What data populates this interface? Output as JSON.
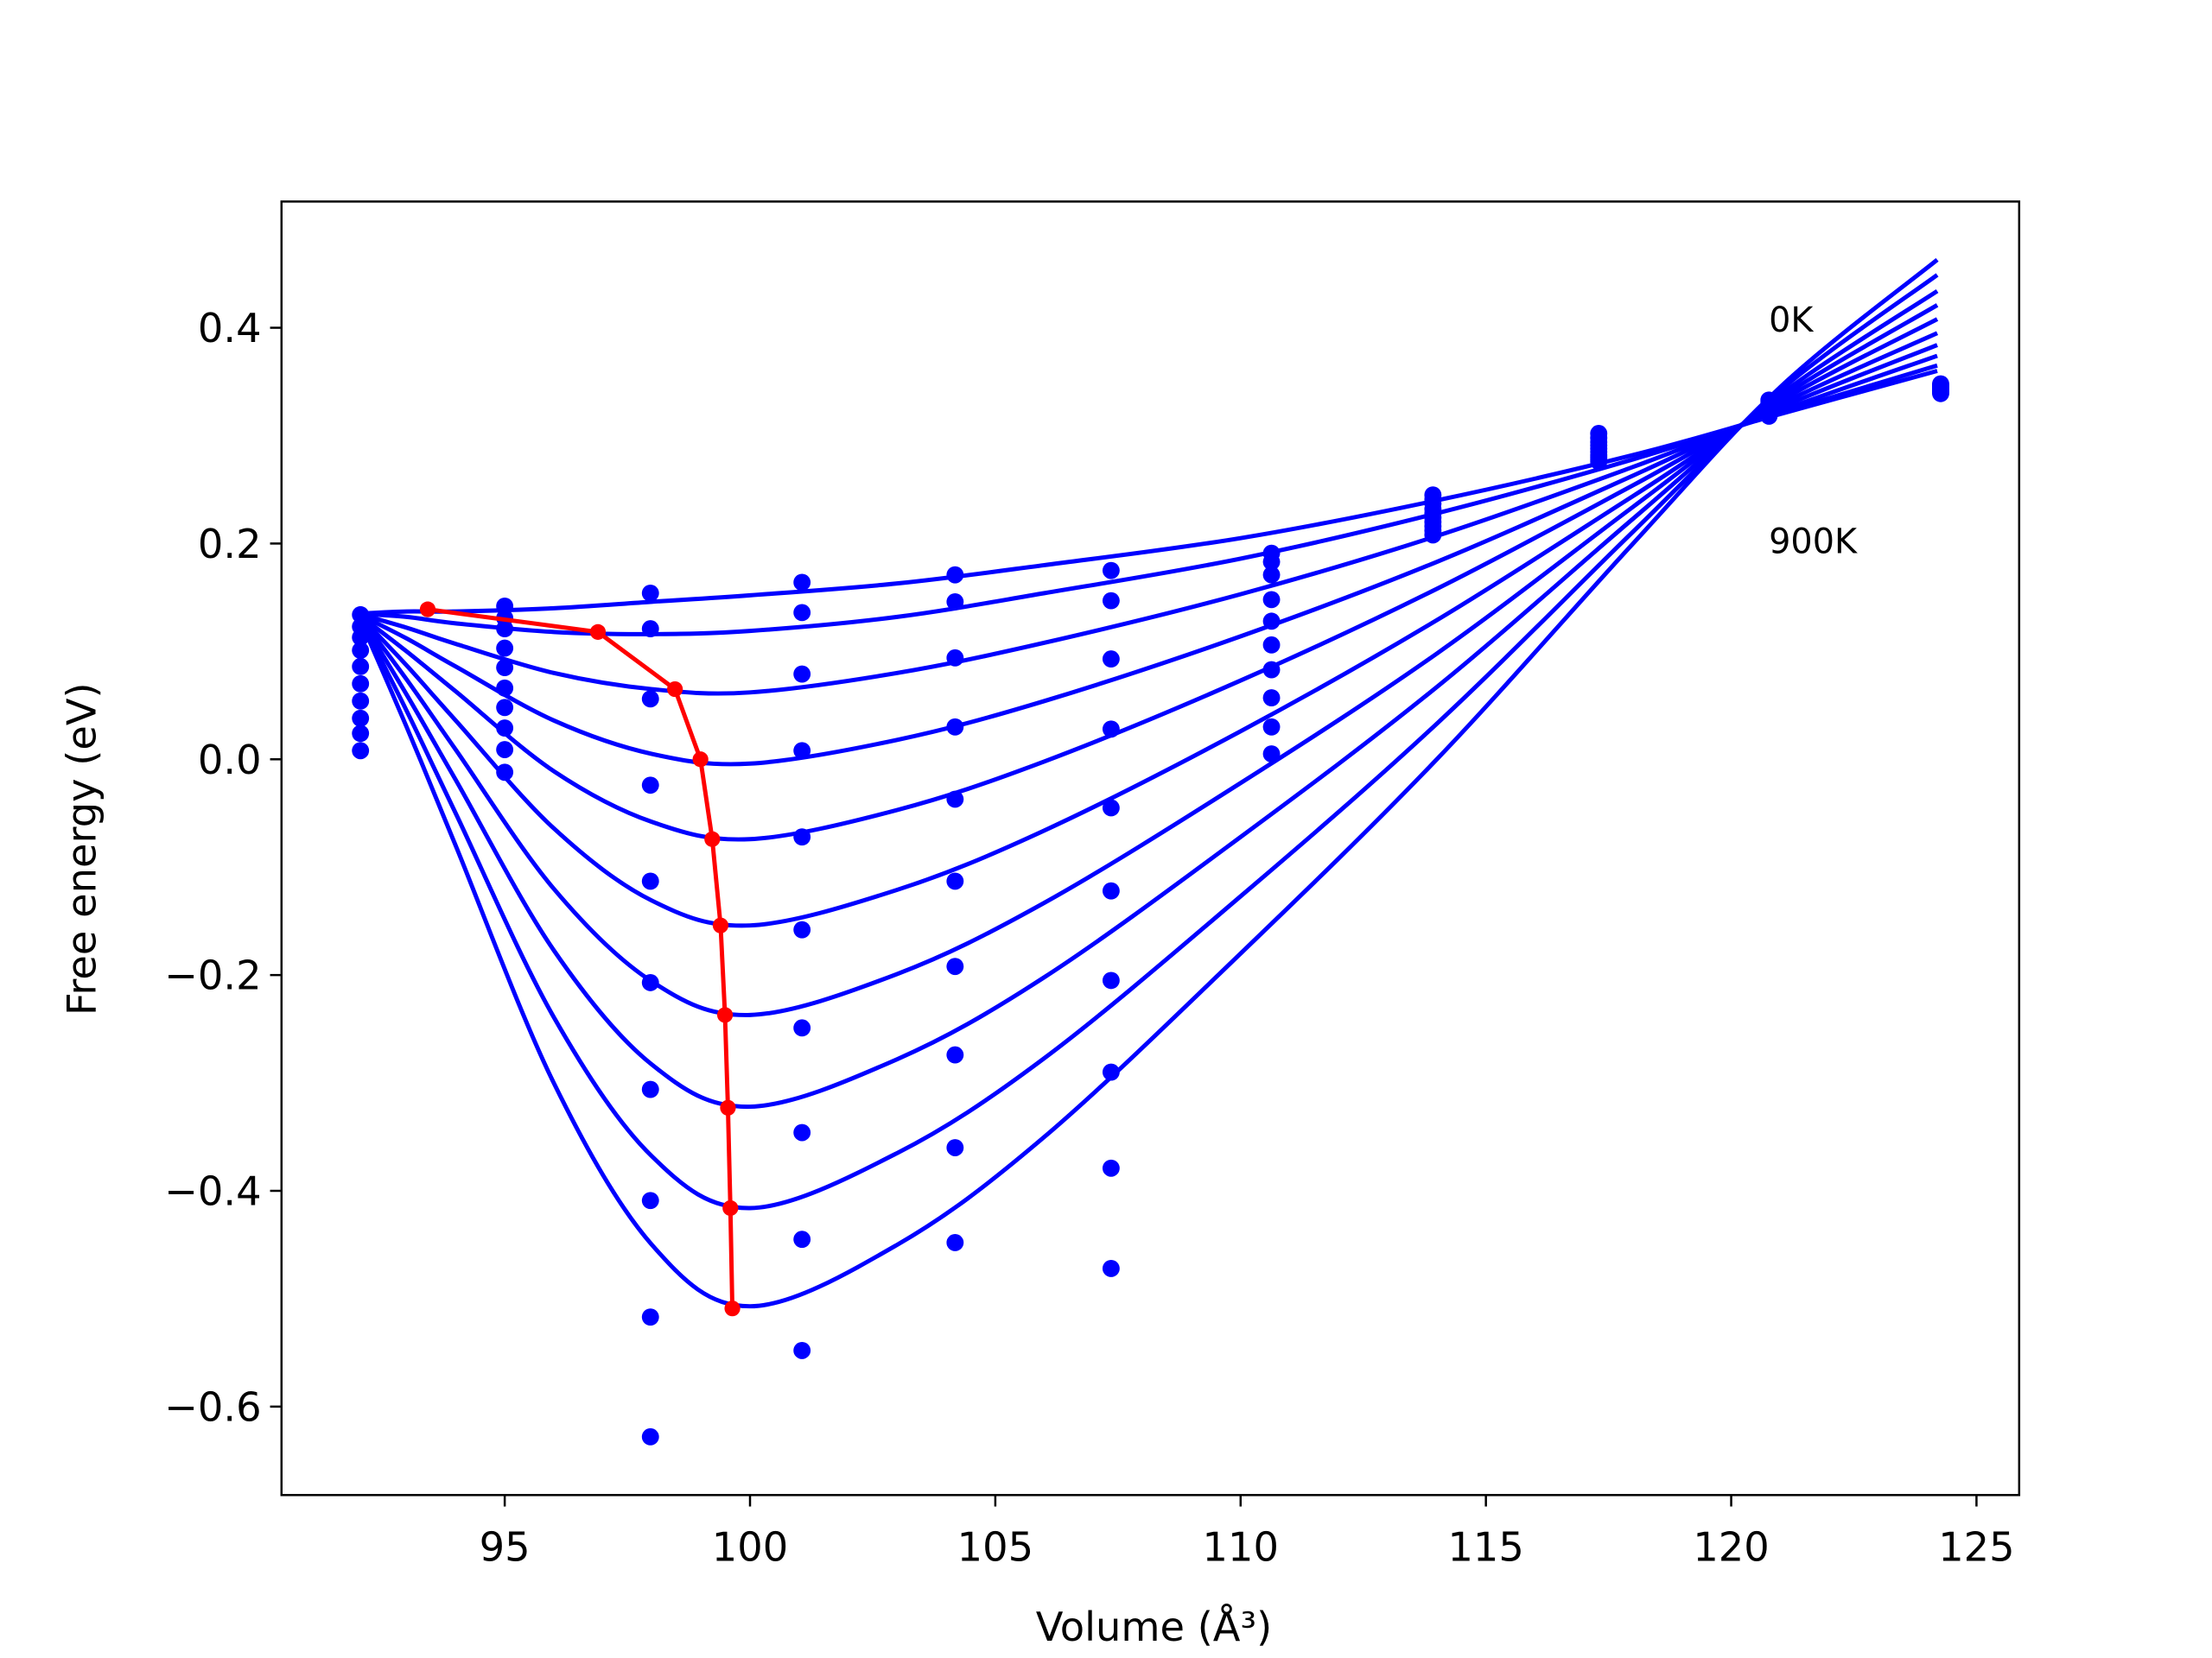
{
  "chart_data": {
    "type": "line",
    "xlabel": "Volume (Å³)",
    "ylabel": "Free energy (eV)",
    "annotations": [
      "0K",
      "900K"
    ],
    "xlim": [
      90.45,
      125.87
    ],
    "ylim": [
      -0.682,
      0.517
    ],
    "xticks": [
      95,
      100,
      105,
      110,
      115,
      120,
      125
    ],
    "yticks": [
      {
        "value": -0.6,
        "label": "−0.6"
      },
      {
        "value": -0.4,
        "label": "−0.4"
      },
      {
        "value": -0.2,
        "label": "−0.2"
      },
      {
        "value": 0,
        "label": "0.0"
      },
      0.2,
      0.4
    ],
    "curve_x": [
      92,
      93,
      94,
      96,
      98,
      100,
      103,
      106,
      110,
      114,
      118,
      121,
      124.2
    ],
    "curve_color": "#0000ff",
    "curves": [
      [
        0.135,
        0.137,
        0.137,
        0.14,
        0.146,
        0.152,
        0.163,
        0.18,
        0.205,
        0.24,
        0.282,
        0.32,
        0.36
      ],
      [
        0.135,
        0.132,
        0.126,
        0.118,
        0.116,
        0.119,
        0.132,
        0.154,
        0.186,
        0.228,
        0.278,
        0.321,
        0.365
      ],
      [
        0.135,
        0.122,
        0.107,
        0.08,
        0.065,
        0.062,
        0.08,
        0.108,
        0.153,
        0.207,
        0.271,
        0.323,
        0.374
      ],
      [
        0.135,
        0.112,
        0.086,
        0.036,
        0.005,
        -0.004,
        0.018,
        0.054,
        0.114,
        0.183,
        0.263,
        0.326,
        0.384
      ],
      [
        0.135,
        0.1,
        0.063,
        -0.011,
        -0.058,
        -0.074,
        -0.047,
        -0.002,
        0.073,
        0.158,
        0.254,
        0.329,
        0.395
      ],
      [
        0.135,
        0.087,
        0.036,
        -0.064,
        -0.131,
        -0.154,
        -0.121,
        -0.066,
        0.026,
        0.129,
        0.244,
        0.332,
        0.408
      ],
      [
        0.135,
        0.074,
        0.009,
        -0.12,
        -0.206,
        -0.237,
        -0.199,
        -0.133,
        -0.022,
        0.098,
        0.234,
        0.335,
        0.421
      ],
      [
        0.135,
        0.06,
        -0.019,
        -0.177,
        -0.283,
        -0.322,
        -0.278,
        -0.202,
        -0.072,
        0.067,
        0.223,
        0.338,
        0.434
      ],
      [
        0.135,
        0.045,
        -0.05,
        -0.239,
        -0.368,
        -0.416,
        -0.365,
        -0.277,
        -0.127,
        0.033,
        0.211,
        0.342,
        0.449
      ],
      [
        0.135,
        0.03,
        -0.08,
        -0.3,
        -0.45,
        -0.507,
        -0.45,
        -0.35,
        -0.18,
        0.0,
        0.2,
        0.345,
        0.463
      ]
    ],
    "points_x": [
      92.06,
      95,
      97.97,
      101.06,
      104.18,
      107.36,
      110.63,
      113.92,
      117.3,
      120.77,
      124.27
    ],
    "points_color": "#0000ff",
    "points": [
      [
        0.134,
        0.142,
        0.154,
        0.164,
        0.171,
        0.175,
        0.191,
        0.245,
        0.302,
        0.333,
        0.348
      ],
      [
        0.123,
        0.131,
        0.121,
        0.136,
        0.146,
        0.147,
        0.183,
        0.241,
        0.298,
        0.331,
        0.347
      ],
      [
        0.113,
        0.121,
        0.056,
        0.079,
        0.094,
        0.093,
        0.171,
        0.237,
        0.294,
        0.329,
        0.346
      ],
      [
        0.101,
        0.103,
        -0.024,
        0.008,
        0.03,
        0.028,
        0.148,
        0.232,
        0.291,
        0.327,
        0.345
      ],
      [
        0.086,
        0.085,
        -0.113,
        -0.072,
        -0.037,
        -0.045,
        0.128,
        0.228,
        0.288,
        0.325,
        0.344
      ],
      [
        0.07,
        0.066,
        -0.207,
        -0.158,
        -0.113,
        -0.122,
        0.106,
        0.224,
        0.285,
        0.323,
        0.343
      ],
      [
        0.054,
        0.048,
        -0.306,
        -0.249,
        -0.192,
        -0.205,
        0.083,
        0.22,
        0.282,
        0.322,
        0.342
      ],
      [
        0.038,
        0.029,
        -0.409,
        -0.346,
        -0.274,
        -0.29,
        0.057,
        0.216,
        0.28,
        0.32,
        0.341
      ],
      [
        0.024,
        0.009,
        -0.517,
        -0.445,
        -0.36,
        -0.379,
        0.03,
        0.212,
        0.278,
        0.319,
        0.34
      ],
      [
        0.008,
        -0.012,
        -0.628,
        -0.548,
        -0.448,
        -0.472,
        0.005,
        0.208,
        0.276,
        0.318,
        0.339
      ]
    ],
    "minima_x": [
      93.43,
      96.9,
      98.47,
      98.99,
      99.23,
      99.4,
      99.49,
      99.55,
      99.6,
      99.64
    ],
    "minima_y": [
      0.139,
      0.118,
      0.065,
      0.0,
      -0.074,
      -0.154,
      -0.237,
      -0.323,
      -0.416,
      -0.509
    ],
    "minima_color": "#ff0000"
  }
}
